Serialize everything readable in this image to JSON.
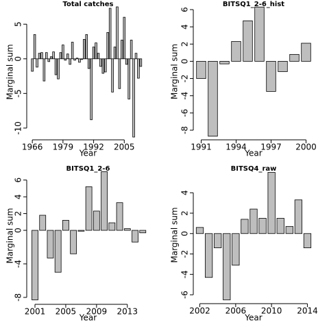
{
  "chart_data": [
    {
      "type": "bar",
      "title": "Total catches",
      "xlabel": "Year",
      "ylabel": "Marginal sum",
      "color": "#bebebe",
      "x": [
        1966,
        1967,
        1968,
        1969,
        1970,
        1971,
        1972,
        1973,
        1974,
        1975,
        1976,
        1977,
        1978,
        1979,
        1980,
        1981,
        1982,
        1983,
        1984,
        1985,
        1986,
        1987,
        1988,
        1989,
        1990,
        1991,
        1992,
        1993,
        1994,
        1995,
        1996,
        1997,
        1998,
        1999,
        2000,
        2001,
        2002,
        2003,
        2004,
        2005,
        2006,
        2007,
        2008,
        2009,
        2010,
        2011,
        2012
      ],
      "values": [
        -1.8,
        3.5,
        -1.2,
        0.8,
        0.9,
        -3.2,
        0.9,
        -0.4,
        0.3,
        1.0,
        -2.3,
        -2.9,
        0.9,
        2.0,
        -0.2,
        0.7,
        -0.8,
        2.4,
        -0.2,
        0.1,
        -0.5,
        -0.1,
        2.8,
        3.5,
        -1.4,
        -8.8,
        1.7,
        2.3,
        0.8,
        -1.1,
        -2.1,
        -1.9,
        3.8,
        7.3,
        -4.8,
        1.7,
        7.5,
        -4.3,
        2.7,
        6.0,
        -0.8,
        -5.8,
        2.7,
        -11.3,
        0.8,
        -2.8,
        -1.1
      ],
      "xlim": [
        1964.5,
        2014.8
      ],
      "ylim": [
        -11.3,
        7.5
      ],
      "xticks": [
        1966,
        1979,
        1992,
        2005
      ],
      "yticks": [
        -10,
        -5,
        0,
        5
      ]
    },
    {
      "type": "bar",
      "title": "BITSQ1_2-6_hist",
      "xlabel": "Year",
      "ylabel": "Marginal sum",
      "color": "#bebebe",
      "x": [
        1991,
        1992,
        1993,
        1994,
        1995,
        1996,
        1997,
        1998,
        1999,
        2000
      ],
      "values": [
        -2.0,
        -8.7,
        -0.3,
        2.3,
        4.7,
        6.3,
        -3.5,
        -1.2,
        0.8,
        2.1
      ],
      "xlim": [
        1990.5,
        2000.5
      ],
      "ylim": [
        -8.8,
        6.4
      ],
      "xticks": [
        1991,
        1994,
        1997,
        2000
      ],
      "yticks": [
        -8,
        -6,
        -4,
        -2,
        0,
        2,
        4,
        6
      ]
    },
    {
      "type": "bar",
      "title": "BITSQ1_2-6",
      "xlabel": "Year",
      "ylabel": "Marginal sum",
      "color": "#bebebe",
      "x": [
        2001,
        2002,
        2003,
        2004,
        2005,
        2006,
        2007,
        2008,
        2009,
        2010,
        2011,
        2012,
        2013,
        2014,
        2015
      ],
      "values": [
        -8.3,
        1.8,
        -3.3,
        -5.0,
        1.2,
        -2.8,
        -0.1,
        5.2,
        2.3,
        7.0,
        0.9,
        3.3,
        0.2,
        -1.4,
        -0.3
      ],
      "xlim": [
        2000.2,
        2015.6
      ],
      "ylim": [
        -8.5,
        7.2
      ],
      "xticks": [
        2001,
        2005,
        2009,
        2013
      ],
      "yticks": [
        -8,
        -4,
        0,
        2,
        4,
        6
      ]
    },
    {
      "type": "bar",
      "title": "BITSQ4_raw",
      "xlabel": "Year",
      "ylabel": "Marginal sum",
      "color": "#bebebe",
      "x": [
        2002,
        2003,
        2004,
        2005,
        2006,
        2007,
        2008,
        2009,
        2010,
        2011,
        2012,
        2013,
        2014
      ],
      "values": [
        0.6,
        -4.3,
        -1.4,
        -6.5,
        -3.1,
        1.4,
        2.4,
        1.5,
        6.0,
        1.5,
        0.7,
        3.3,
        -1.4
      ],
      "xlim": [
        2001.5,
        2014.5
      ],
      "ylim": [
        -6.6,
        6.3
      ],
      "xticks": [
        2002,
        2006,
        2010,
        2014
      ],
      "yticks": [
        -6,
        -4,
        -2,
        0,
        2,
        4
      ]
    }
  ]
}
